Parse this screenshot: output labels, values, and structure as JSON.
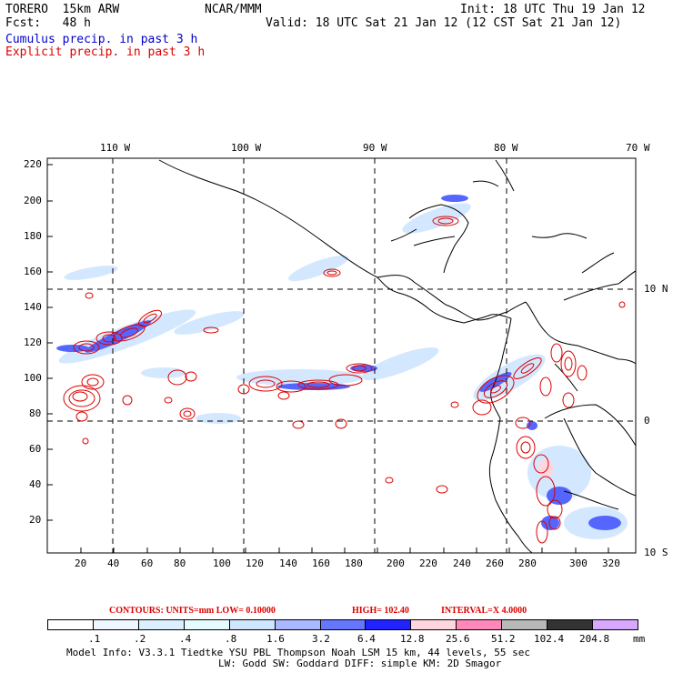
{
  "header": {
    "model_line": "TORERO  15km ARW",
    "org": "NCAR/MMM",
    "init": "Init: 18 UTC Thu 19 Jan 12",
    "fcst": "Fcst:   48 h",
    "valid": "Valid: 18 UTC Sat 21 Jan 12 (12 CST Sat 21 Jan 12)",
    "line_cumulus": "Cumulus precip. in past 3 h",
    "line_explicit": "Explicit precip. in past 3 h"
  },
  "colors": {
    "cumulus_title": "#0000cc",
    "explicit_title": "#dd0000",
    "contour": "#dd0000",
    "grid": "#000000"
  },
  "map": {
    "lon_labels": [
      "110 W",
      "100 W",
      "90 W",
      "80 W",
      "70 W"
    ],
    "lat_labels": [
      "10 N",
      "0",
      "10 S"
    ],
    "y_ticks": [
      "220",
      "200",
      "180",
      "160",
      "140",
      "120",
      "100",
      "80",
      "60",
      "40",
      "20"
    ],
    "x_ticks": [
      "20",
      "40",
      "60",
      "80",
      "100",
      "120",
      "140",
      "160",
      "180",
      "200",
      "220",
      "240",
      "260",
      "280",
      "300",
      "320"
    ]
  },
  "contour_info": {
    "units": "CONTOURS:  UNITS=mm  LOW= 0.10000",
    "high": "HIGH=  102.40",
    "interval": "INTERVAL=X  4.0000"
  },
  "legend": {
    "labels": [
      ".1",
      ".2",
      ".4",
      ".8",
      "1.6",
      "3.2",
      "6.4",
      "12.8",
      "25.6",
      "51.2",
      "102.4",
      "204.8"
    ],
    "unit": "mm",
    "colors": [
      "#ffffff",
      "#eef6ff",
      "#dcefff",
      "#e6fbff",
      "#cfe6ff",
      "#a9b8ff",
      "#6677ff",
      "#2222ff",
      "#ffd6dd",
      "#ff88bb",
      "#b8b8b8",
      "#333333",
      "#d8a8ff"
    ]
  },
  "footer": {
    "line1": "Model Info: V3.3.1    Tiedtke YSU PBL  Thompson    Noah LSM  15 km,   44 levels,   55 sec",
    "line2": "LW: Godd SW: Goddard DIFF: simple KM: 2D Smagor"
  }
}
